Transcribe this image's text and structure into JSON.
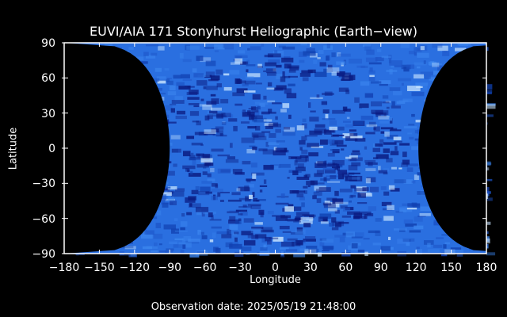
{
  "title": "EUVI/AIA 171 Stonyhurst Heliographic (Earth−view)",
  "xlabel": "Longitude",
  "ylabel": "Latitude",
  "observation": "Observation date: 2025/05/19 21:48:00",
  "x_ticks": [
    "−180",
    "−150",
    "−120",
    "−90",
    "−60",
    "−30",
    "0",
    "30",
    "60",
    "90",
    "120",
    "150",
    "180"
  ],
  "y_ticks": [
    "90",
    "60",
    "30",
    "0",
    "−30",
    "−60",
    "−90"
  ],
  "x_range": [
    -180,
    180
  ],
  "y_range": [
    -90,
    90
  ],
  "colors": {
    "background": "#000000",
    "map_base": "#2a6fe0",
    "map_dark": "#0a1a80",
    "map_bright": "#c8e4ff",
    "axes": "#ffffff"
  }
}
